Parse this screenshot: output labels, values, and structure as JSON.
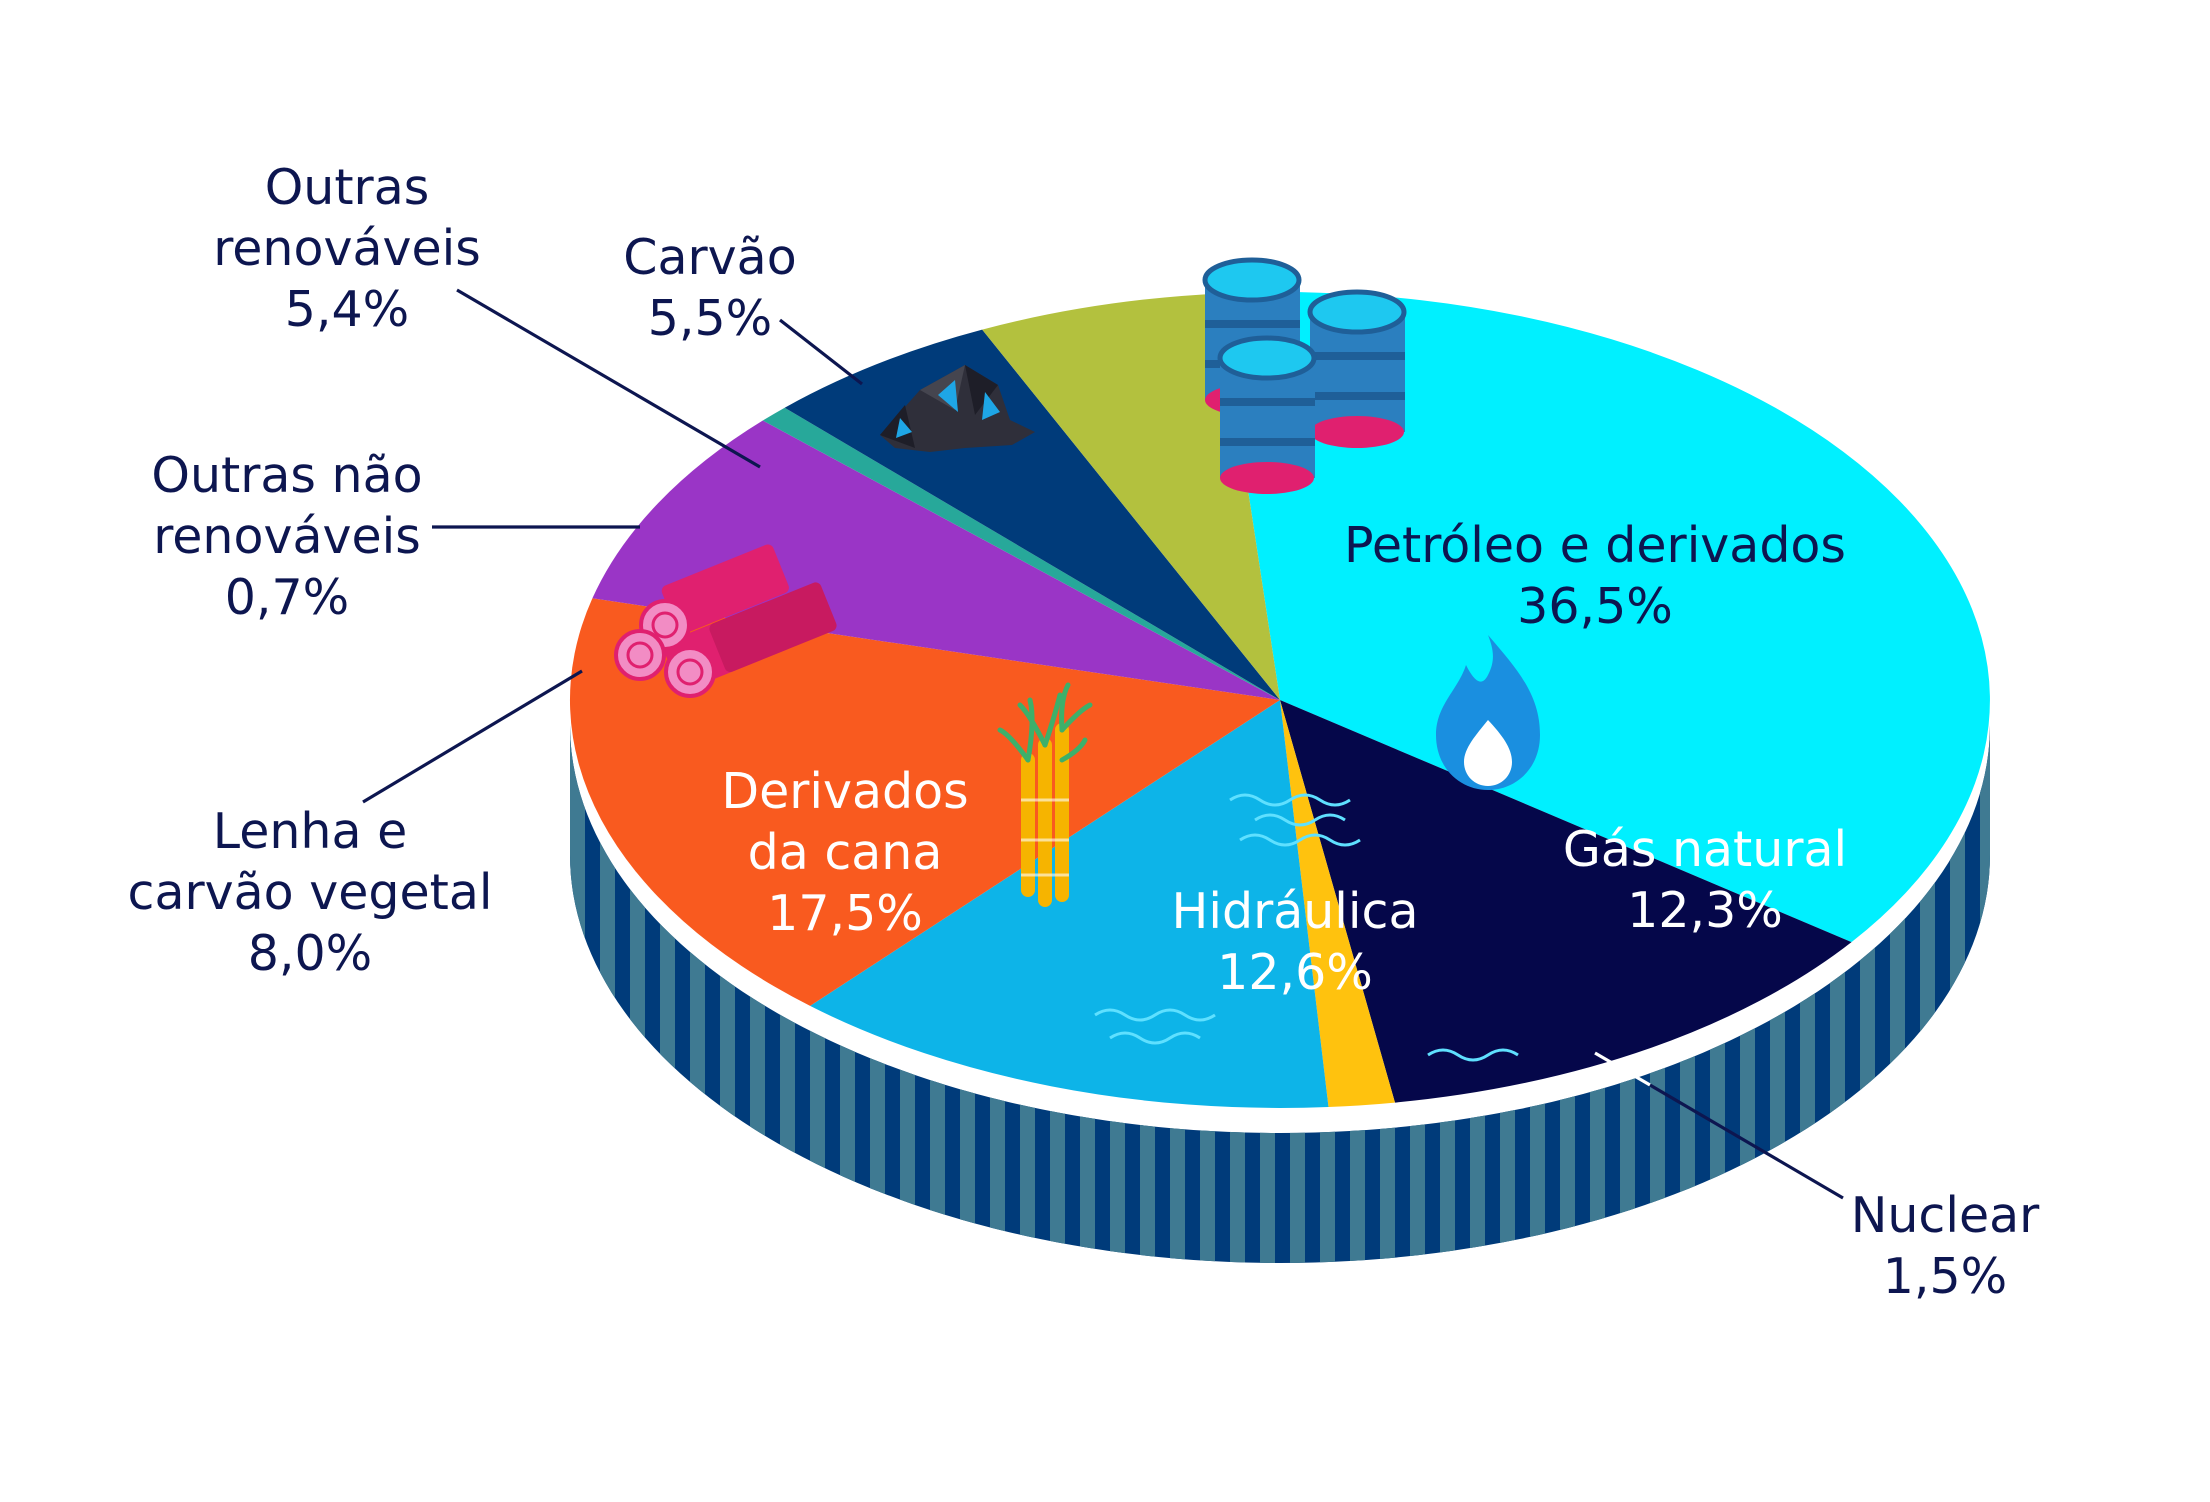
{
  "chart_data": {
    "type": "pie",
    "title": "",
    "series": [
      {
        "label": "Petróleo e derivados",
        "value": 36.5,
        "value_text": "36,5%",
        "color": "#00f0ff"
      },
      {
        "label": "Gás natural",
        "value": 12.3,
        "value_text": "12,3%",
        "color": "#05074a"
      },
      {
        "label": "Nuclear",
        "value": 1.5,
        "value_text": "1,5%",
        "color": "#ffc20e"
      },
      {
        "label": "Hidráulica",
        "value": 12.6,
        "value_text": "12,6%",
        "color": "#0db4e8"
      },
      {
        "label": "Derivados da cana",
        "value": 17.5,
        "value_text": "17,5%",
        "color": "#f95a1f"
      },
      {
        "label": "Lenha e carvão vegetal",
        "value": 8.0,
        "value_text": "8,0%",
        "color": "#9a35c6"
      },
      {
        "label": "Outras não renováveis",
        "value": 0.7,
        "value_text": "0,7%",
        "color": "#27a89a"
      },
      {
        "label": "Outras renováveis",
        "value": 5.4,
        "value_text": "5,4%",
        "color": "#003b7a"
      },
      {
        "label": "Carvão",
        "value": 5.5,
        "value_text": "5,5%",
        "color": "#b3c13e"
      }
    ],
    "label_lines": {
      "petroleo": [
        "Petróleo e derivados",
        "36,5%"
      ],
      "gas": [
        "Gás natural",
        "12,3%"
      ],
      "nuclear": [
        "Nuclear",
        "1,5%"
      ],
      "hidraulica": [
        "Hidráulica",
        "12,6%"
      ],
      "cana": [
        "Derivados",
        "da cana",
        "17,5%"
      ],
      "lenha": [
        "Lenha e",
        "carvão vegetal",
        "8,0%"
      ],
      "outras_nao": [
        "Outras não",
        "renováveis",
        "0,7%"
      ],
      "outras_ren": [
        "Outras",
        "renováveis",
        "5,4%"
      ],
      "carvao": [
        "Carvão",
        "5,5%"
      ]
    },
    "side_colors": {
      "dark": "#003b7a",
      "light": "#3f7a92"
    },
    "icons": [
      "oil-barrels-icon",
      "gas-flame-icon",
      "water-waves-icon",
      "sugarcane-icon",
      "firewood-logs-icon",
      "coal-lumps-icon"
    ]
  }
}
